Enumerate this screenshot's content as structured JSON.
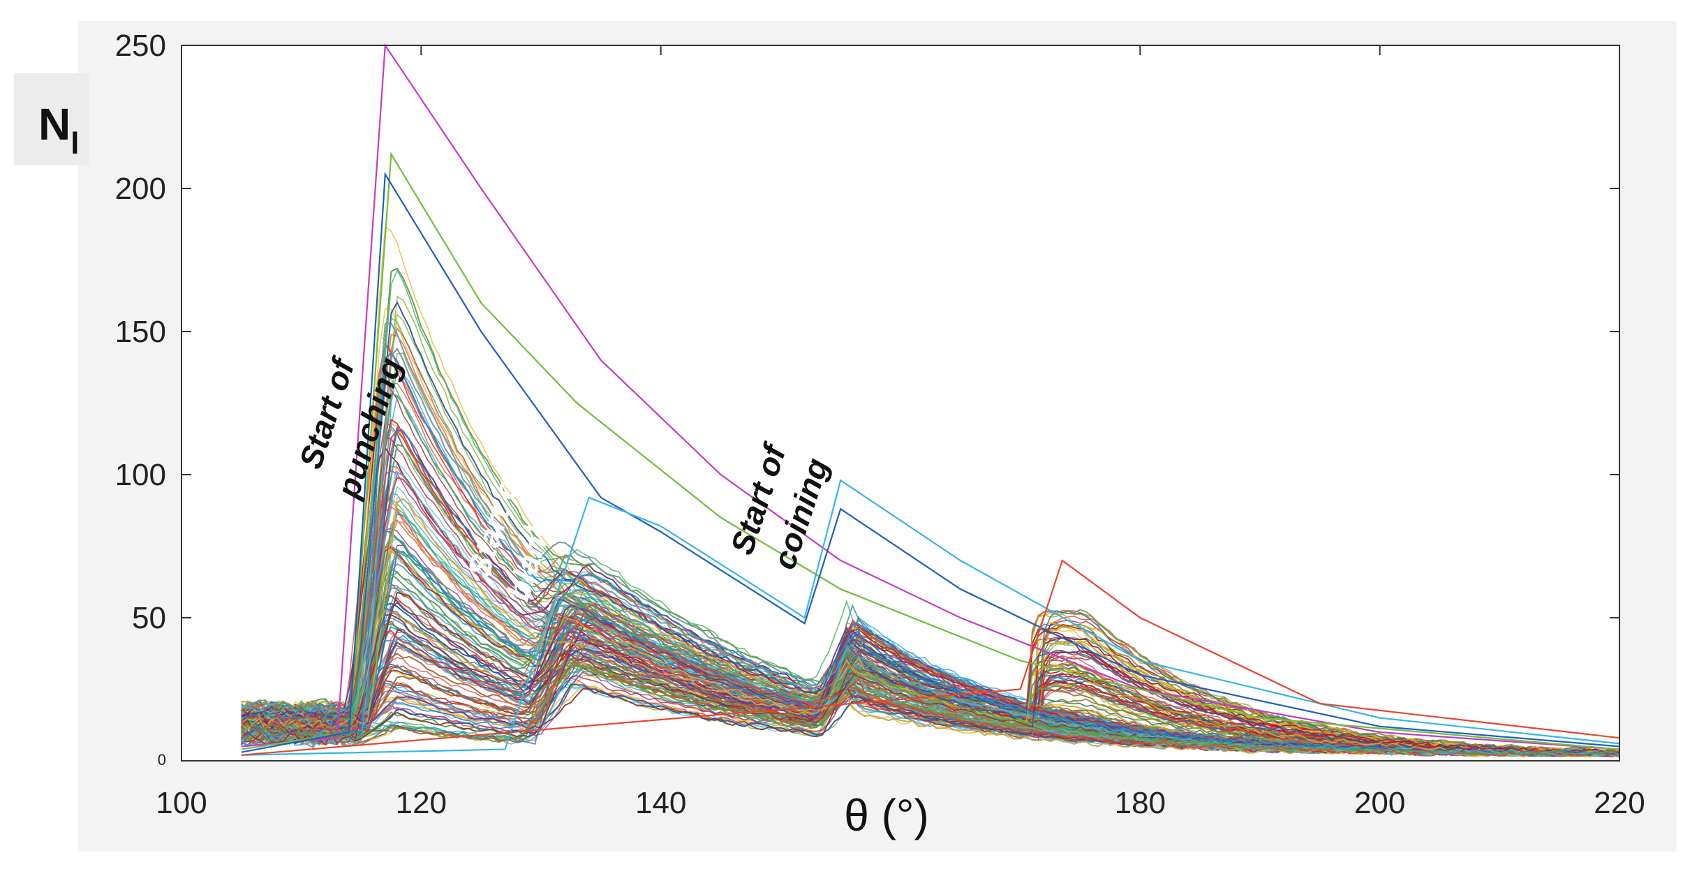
{
  "chart_data": {
    "type": "line",
    "ylabel": "N",
    "ylabel_subscript": "l",
    "xlabel": "θ (°)",
    "xlim": [
      100,
      220
    ],
    "ylim": [
      0,
      250
    ],
    "x_ticks": [
      "100",
      "120",
      "140",
      "180",
      "200",
      "220"
    ],
    "y_ticks": [
      "0",
      "50",
      "100",
      "150",
      "200",
      "250"
    ],
    "grid": false,
    "legend": "none",
    "annotations": [
      {
        "lines": [
          "Start of",
          "punching"
        ],
        "x": 113,
        "y": 120,
        "color": "#111111"
      },
      {
        "lines": [
          "Start of",
          "blanking"
        ],
        "x": 127,
        "y": 82,
        "color": "#ffffff"
      },
      {
        "lines": [
          "Start of",
          "coining"
        ],
        "x": 149,
        "y": 90,
        "color": "#111111"
      }
    ],
    "envelope_series": [
      {
        "name": "",
        "color": "#c43cc4",
        "points": [
          [
            105,
            5
          ],
          [
            113,
            8
          ],
          [
            117,
            250
          ],
          [
            125,
            200
          ],
          [
            135,
            140
          ],
          [
            145,
            100
          ],
          [
            155,
            70
          ],
          [
            165,
            50
          ],
          [
            180,
            25
          ],
          [
            200,
            10
          ],
          [
            220,
            4
          ]
        ]
      },
      {
        "name": "",
        "color": "#6fbf3a",
        "points": [
          [
            105,
            4
          ],
          [
            114,
            10
          ],
          [
            117.5,
            212
          ],
          [
            125,
            160
          ],
          [
            133,
            125
          ],
          [
            145,
            85
          ],
          [
            155,
            60
          ],
          [
            170,
            35
          ],
          [
            190,
            15
          ],
          [
            220,
            4
          ]
        ]
      },
      {
        "name": "",
        "color": "#1f5fbf",
        "points": [
          [
            105,
            3
          ],
          [
            114,
            10
          ],
          [
            117,
            205
          ],
          [
            125,
            150
          ],
          [
            135,
            92
          ],
          [
            140,
            80
          ],
          [
            152,
            48
          ],
          [
            155,
            88
          ],
          [
            165,
            60
          ],
          [
            180,
            30
          ],
          [
            200,
            12
          ],
          [
            220,
            5
          ]
        ]
      },
      {
        "name": "",
        "color": "#35b6e8",
        "points": [
          [
            105,
            2
          ],
          [
            127,
            4
          ],
          [
            134,
            92
          ],
          [
            140,
            82
          ],
          [
            152,
            50
          ],
          [
            155,
            98
          ],
          [
            165,
            70
          ],
          [
            180,
            35
          ],
          [
            200,
            15
          ],
          [
            220,
            6
          ]
        ]
      },
      {
        "name": "",
        "color": "#e8452f",
        "points": [
          [
            105,
            2
          ],
          [
            170,
            25
          ],
          [
            173.5,
            70
          ],
          [
            180,
            50
          ],
          [
            195,
            20
          ],
          [
            220,
            8
          ]
        ]
      }
    ],
    "band_series_count": 520,
    "band_palette": [
      "#0072bd",
      "#d95319",
      "#edb120",
      "#7e2f8e",
      "#77ac30",
      "#4dbeee",
      "#a2142f",
      "#1f9fdf",
      "#e23c3c",
      "#33aa55"
    ],
    "phase_markers": [
      113.5,
      116.5,
      128,
      131,
      152.5,
      155.5,
      170.5
    ]
  }
}
